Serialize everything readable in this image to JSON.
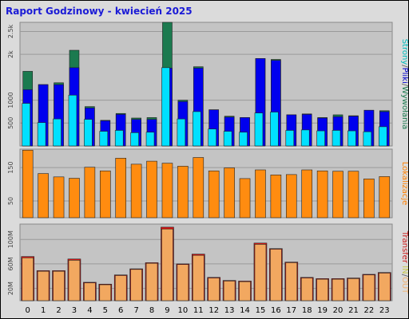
{
  "title": "Raport Godzinowy -  kwiecień 2025",
  "chart_data": [
    {
      "type": "bar",
      "panel": "hits",
      "categories": [
        "0",
        "1",
        "2",
        "3",
        "4",
        "5",
        "6",
        "7",
        "8",
        "9",
        "10",
        "11",
        "12",
        "13",
        "14",
        "15",
        "16",
        "17",
        "18",
        "19",
        "20",
        "21",
        "22",
        "23"
      ],
      "ylim": [
        0,
        2700
      ],
      "yticks": [
        {
          "value": 500,
          "label": "500"
        },
        {
          "value": 1000,
          "label": "1000"
        },
        {
          "value": 2000,
          "label": "2k"
        },
        {
          "value": 2500,
          "label": "2.5k"
        }
      ],
      "legend_side": "right",
      "legend_labels": [
        {
          "text": "Strony",
          "color": "#00bcbc"
        },
        {
          "text": "/",
          "color": "#606060"
        },
        {
          "text": "Pliki",
          "color": "#0000cc"
        },
        {
          "text": "/",
          "color": "#606060"
        },
        {
          "text": "Wywołania",
          "color": "#1b7a4f"
        }
      ],
      "series": [
        {
          "name": "Wywołania",
          "color": "#1b7a4f",
          "values": [
            1630,
            1340,
            1380,
            2090,
            860,
            560,
            710,
            610,
            620,
            2700,
            1000,
            1730,
            790,
            650,
            620,
            1910,
            1890,
            680,
            700,
            620,
            680,
            660,
            780,
            770
          ]
        },
        {
          "name": "Pliki",
          "color": "#0000ee",
          "values": [
            1230,
            1340,
            1340,
            1710,
            830,
            550,
            690,
            580,
            580,
            1700,
            970,
            1700,
            790,
            630,
            620,
            1910,
            1870,
            680,
            690,
            610,
            640,
            650,
            780,
            750
          ]
        },
        {
          "name": "Strony",
          "color": "#00e0ff",
          "values": [
            930,
            510,
            590,
            1110,
            580,
            320,
            340,
            290,
            300,
            1710,
            590,
            750,
            370,
            320,
            300,
            720,
            740,
            340,
            350,
            330,
            340,
            330,
            310,
            420
          ]
        }
      ]
    },
    {
      "type": "bar",
      "panel": "visits",
      "categories": [
        "0",
        "1",
        "2",
        "3",
        "4",
        "5",
        "6",
        "7",
        "8",
        "9",
        "10",
        "11",
        "12",
        "13",
        "14",
        "15",
        "16",
        "17",
        "18",
        "19",
        "20",
        "21",
        "22",
        "23"
      ],
      "ylim": [
        0,
        205
      ],
      "yticks": [
        {
          "value": 50,
          "label": "50"
        },
        {
          "value": 150,
          "label": "150"
        }
      ],
      "legend_side": "right",
      "legend_labels": [
        {
          "text": "Lokalizacje",
          "color": "#ff8000"
        }
      ],
      "series": [
        {
          "name": "Lokalizacje",
          "color": "#ff8c10",
          "values": [
            202,
            132,
            122,
            118,
            151,
            140,
            178,
            160,
            169,
            163,
            154,
            180,
            140,
            149,
            117,
            143,
            128,
            129,
            143,
            140,
            139,
            139,
            116,
            123
          ]
        }
      ]
    },
    {
      "type": "bar",
      "panel": "traffic",
      "categories": [
        "0",
        "1",
        "2",
        "3",
        "4",
        "5",
        "6",
        "7",
        "8",
        "9",
        "10",
        "11",
        "12",
        "13",
        "14",
        "15",
        "16",
        "17",
        "18",
        "19",
        "20",
        "21",
        "22",
        "23"
      ],
      "ylim": [
        0,
        125
      ],
      "yticks": [
        {
          "value": 20,
          "label": "20M"
        },
        {
          "value": 60,
          "label": "60M"
        },
        {
          "value": 100,
          "label": "100M"
        }
      ],
      "legend_side": "right",
      "legend_labels": [
        {
          "text": "Transfer",
          "color": "#cc1a1a"
        },
        {
          "text": " ",
          "color": "#606060"
        },
        {
          "text": "IN",
          "color": "#c8c850"
        },
        {
          "text": "/",
          "color": "#606060"
        },
        {
          "text": "OUT",
          "color": "#f0b070"
        }
      ],
      "series": [
        {
          "name": "Transfer",
          "color": "#e01010",
          "values": [
            72,
            49,
            49,
            68,
            30,
            27,
            42,
            52,
            62,
            120,
            60,
            76,
            38,
            33,
            32,
            94,
            85,
            63,
            38,
            36,
            36,
            37,
            43,
            46
          ]
        },
        {
          "name": "OUT",
          "color": "#f2a860",
          "values": [
            70,
            48,
            48,
            66,
            29,
            26,
            41,
            51,
            61,
            117,
            59,
            74,
            37,
            32,
            31,
            92,
            84,
            62,
            37,
            35,
            35,
            36,
            42,
            45
          ]
        }
      ]
    }
  ]
}
